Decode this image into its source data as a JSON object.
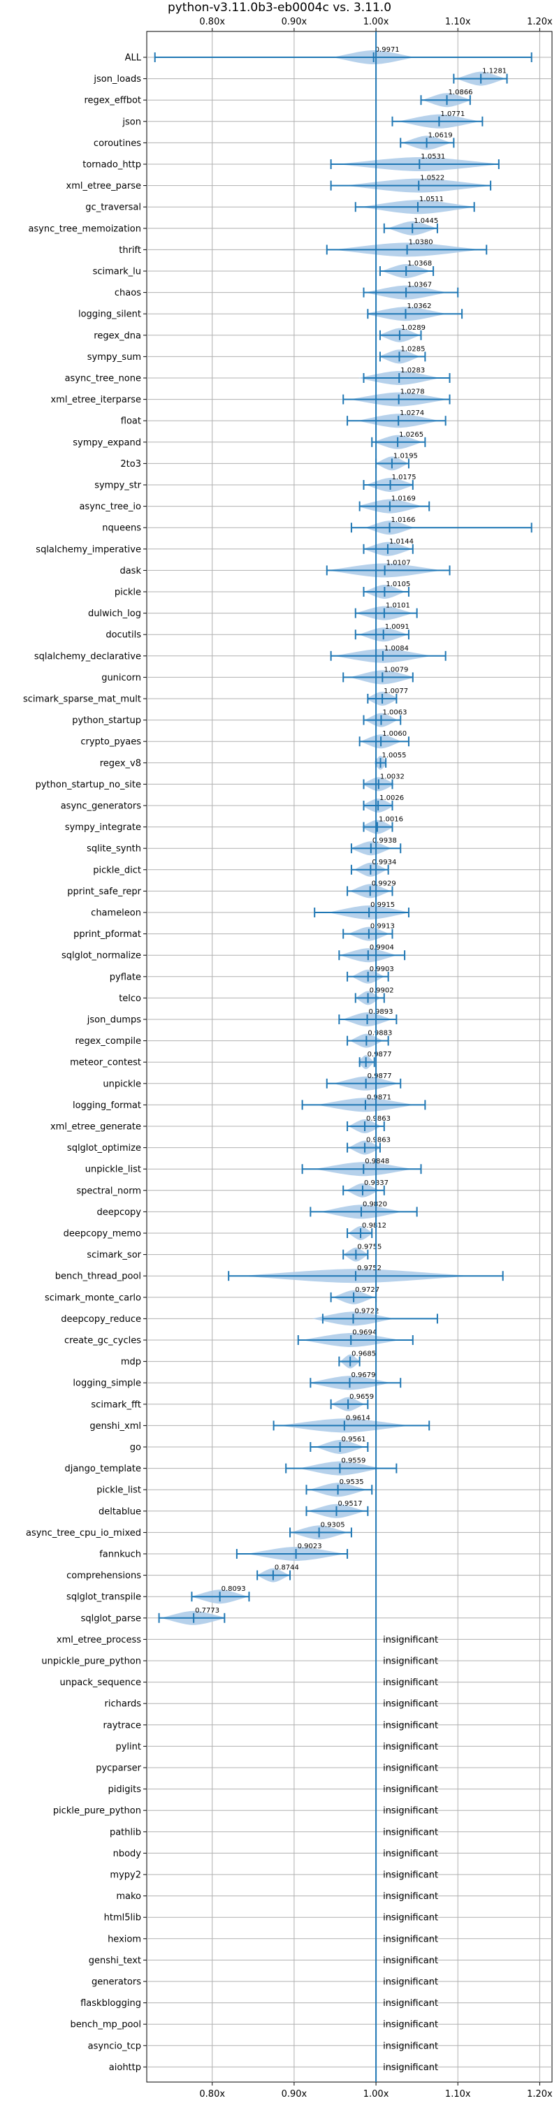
{
  "chart_data": {
    "type": "violin",
    "title": "python-v3.11.0b3-eb0004c vs. 3.11.0",
    "xlim": [
      0.72,
      1.215
    ],
    "x_ticks": [
      {
        "value": 0.8,
        "label": "0.80x"
      },
      {
        "value": 0.9,
        "label": "0.90x"
      },
      {
        "value": 1.0,
        "label": "1.00x"
      },
      {
        "value": 1.1,
        "label": "1.10x"
      },
      {
        "value": 1.2,
        "label": "1.20x"
      }
    ],
    "reference_line": 1.0,
    "grid": true,
    "colors": {
      "fill": "#a9c9e8",
      "line": "#1f77b4",
      "grid": "#b0b0b0"
    },
    "insignificant_text": "insignificant",
    "benchmarks": [
      {
        "name": "ALL",
        "value": 0.9971,
        "min": 0.73,
        "max": 1.19,
        "spread": 0.05
      },
      {
        "name": "json_loads",
        "value": 1.1281,
        "min": 1.095,
        "max": 1.16,
        "spread": 0.03
      },
      {
        "name": "regex_effbot",
        "value": 1.0866,
        "min": 1.055,
        "max": 1.115,
        "spread": 0.03
      },
      {
        "name": "json",
        "value": 1.0771,
        "min": 1.02,
        "max": 1.13,
        "spread": 0.05
      },
      {
        "name": "coroutines",
        "value": 1.0619,
        "min": 1.03,
        "max": 1.095,
        "spread": 0.03
      },
      {
        "name": "tornado_http",
        "value": 1.0531,
        "min": 0.945,
        "max": 1.15,
        "spread": 0.1
      },
      {
        "name": "xml_etree_parse",
        "value": 1.0522,
        "min": 0.945,
        "max": 1.14,
        "spread": 0.09
      },
      {
        "name": "gc_traversal",
        "value": 1.0511,
        "min": 0.975,
        "max": 1.12,
        "spread": 0.07
      },
      {
        "name": "async_tree_memoization",
        "value": 1.0445,
        "min": 1.01,
        "max": 1.075,
        "spread": 0.03
      },
      {
        "name": "thrift",
        "value": 1.038,
        "min": 0.94,
        "max": 1.135,
        "spread": 0.09
      },
      {
        "name": "scimark_lu",
        "value": 1.0368,
        "min": 1.005,
        "max": 1.07,
        "spread": 0.03
      },
      {
        "name": "chaos",
        "value": 1.0367,
        "min": 0.985,
        "max": 1.1,
        "spread": 0.05
      },
      {
        "name": "logging_silent",
        "value": 1.0362,
        "min": 0.99,
        "max": 1.105,
        "spread": 0.05
      },
      {
        "name": "regex_dna",
        "value": 1.0289,
        "min": 1.005,
        "max": 1.055,
        "spread": 0.025
      },
      {
        "name": "sympy_sum",
        "value": 1.0285,
        "min": 1.005,
        "max": 1.06,
        "spread": 0.025
      },
      {
        "name": "async_tree_none",
        "value": 1.0283,
        "min": 0.985,
        "max": 1.09,
        "spread": 0.05
      },
      {
        "name": "xml_etree_iterparse",
        "value": 1.0278,
        "min": 0.96,
        "max": 1.09,
        "spread": 0.06
      },
      {
        "name": "float",
        "value": 1.0274,
        "min": 0.965,
        "max": 1.085,
        "spread": 0.05
      },
      {
        "name": "sympy_expand",
        "value": 1.0265,
        "min": 0.995,
        "max": 1.06,
        "spread": 0.03
      },
      {
        "name": "2to3",
        "value": 1.0195,
        "min": 1.0,
        "max": 1.04,
        "spread": 0.02
      },
      {
        "name": "sympy_str",
        "value": 1.0175,
        "min": 0.985,
        "max": 1.045,
        "spread": 0.03
      },
      {
        "name": "async_tree_io",
        "value": 1.0169,
        "min": 0.98,
        "max": 1.065,
        "spread": 0.04
      },
      {
        "name": "nqueens",
        "value": 1.0166,
        "min": 0.97,
        "max": 1.19,
        "spread": 0.03
      },
      {
        "name": "sqlalchemy_imperative",
        "value": 1.0144,
        "min": 0.985,
        "max": 1.045,
        "spread": 0.03
      },
      {
        "name": "dask",
        "value": 1.0107,
        "min": 0.94,
        "max": 1.09,
        "spread": 0.07
      },
      {
        "name": "pickle",
        "value": 1.0105,
        "min": 0.985,
        "max": 1.04,
        "spread": 0.025
      },
      {
        "name": "dulwich_log",
        "value": 1.0101,
        "min": 0.975,
        "max": 1.05,
        "spread": 0.035
      },
      {
        "name": "docutils",
        "value": 1.0091,
        "min": 0.975,
        "max": 1.04,
        "spread": 0.03
      },
      {
        "name": "sqlalchemy_declarative",
        "value": 1.0084,
        "min": 0.945,
        "max": 1.085,
        "spread": 0.06
      },
      {
        "name": "gunicorn",
        "value": 1.0079,
        "min": 0.96,
        "max": 1.045,
        "spread": 0.04
      },
      {
        "name": "scimark_sparse_mat_mult",
        "value": 1.0077,
        "min": 0.99,
        "max": 1.025,
        "spread": 0.02
      },
      {
        "name": "python_startup",
        "value": 1.0063,
        "min": 0.985,
        "max": 1.03,
        "spread": 0.02
      },
      {
        "name": "crypto_pyaes",
        "value": 1.006,
        "min": 0.98,
        "max": 1.04,
        "spread": 0.025
      },
      {
        "name": "regex_v8",
        "value": 1.0055,
        "min": 1.0,
        "max": 1.012,
        "spread": 0.008
      },
      {
        "name": "python_startup_no_site",
        "value": 1.0032,
        "min": 0.985,
        "max": 1.02,
        "spread": 0.02
      },
      {
        "name": "async_generators",
        "value": 1.0026,
        "min": 0.985,
        "max": 1.02,
        "spread": 0.02
      },
      {
        "name": "sympy_integrate",
        "value": 1.0016,
        "min": 0.985,
        "max": 1.02,
        "spread": 0.02
      },
      {
        "name": "sqlite_synth",
        "value": 0.9938,
        "min": 0.97,
        "max": 1.03,
        "spread": 0.025
      },
      {
        "name": "pickle_dict",
        "value": 0.9934,
        "min": 0.97,
        "max": 1.015,
        "spread": 0.02
      },
      {
        "name": "pprint_safe_repr",
        "value": 0.9929,
        "min": 0.965,
        "max": 1.02,
        "spread": 0.025
      },
      {
        "name": "chameleon",
        "value": 0.9915,
        "min": 0.925,
        "max": 1.04,
        "spread": 0.05
      },
      {
        "name": "pprint_pformat",
        "value": 0.9913,
        "min": 0.96,
        "max": 1.02,
        "spread": 0.025
      },
      {
        "name": "sqlglot_normalize",
        "value": 0.9904,
        "min": 0.955,
        "max": 1.035,
        "spread": 0.035
      },
      {
        "name": "pyflate",
        "value": 0.9903,
        "min": 0.965,
        "max": 1.015,
        "spread": 0.02
      },
      {
        "name": "telco",
        "value": 0.9902,
        "min": 0.975,
        "max": 1.01,
        "spread": 0.015
      },
      {
        "name": "json_dumps",
        "value": 0.9893,
        "min": 0.955,
        "max": 1.025,
        "spread": 0.03
      },
      {
        "name": "regex_compile",
        "value": 0.9883,
        "min": 0.965,
        "max": 1.015,
        "spread": 0.02
      },
      {
        "name": "meteor_contest",
        "value": 0.9877,
        "min": 0.98,
        "max": 0.998,
        "spread": 0.01
      },
      {
        "name": "unpickle",
        "value": 0.9877,
        "min": 0.94,
        "max": 1.03,
        "spread": 0.04
      },
      {
        "name": "logging_format",
        "value": 0.9871,
        "min": 0.91,
        "max": 1.06,
        "spread": 0.06
      },
      {
        "name": "xml_etree_generate",
        "value": 0.9863,
        "min": 0.965,
        "max": 1.01,
        "spread": 0.02
      },
      {
        "name": "sqlglot_optimize",
        "value": 0.9863,
        "min": 0.965,
        "max": 1.005,
        "spread": 0.02
      },
      {
        "name": "unpickle_list",
        "value": 0.9848,
        "min": 0.91,
        "max": 1.055,
        "spread": 0.06
      },
      {
        "name": "spectral_norm",
        "value": 0.9837,
        "min": 0.96,
        "max": 1.01,
        "spread": 0.02
      },
      {
        "name": "deepcopy",
        "value": 0.982,
        "min": 0.92,
        "max": 1.05,
        "spread": 0.05
      },
      {
        "name": "deepcopy_memo",
        "value": 0.9812,
        "min": 0.965,
        "max": 0.995,
        "spread": 0.015
      },
      {
        "name": "scimark_sor",
        "value": 0.9755,
        "min": 0.96,
        "max": 0.99,
        "spread": 0.015
      },
      {
        "name": "bench_thread_pool",
        "value": 0.9752,
        "min": 0.82,
        "max": 1.155,
        "spread": 0.14
      },
      {
        "name": "scimark_monte_carlo",
        "value": 0.9727,
        "min": 0.945,
        "max": 1.0,
        "spread": 0.025
      },
      {
        "name": "deepcopy_reduce",
        "value": 0.9722,
        "min": 0.935,
        "max": 1.075,
        "spread": 0.05
      },
      {
        "name": "create_gc_cycles",
        "value": 0.9694,
        "min": 0.905,
        "max": 1.045,
        "spread": 0.06
      },
      {
        "name": "mdp",
        "value": 0.9685,
        "min": 0.955,
        "max": 0.98,
        "spread": 0.012
      },
      {
        "name": "logging_simple",
        "value": 0.9679,
        "min": 0.92,
        "max": 1.03,
        "spread": 0.05
      },
      {
        "name": "scimark_fft",
        "value": 0.9659,
        "min": 0.945,
        "max": 0.99,
        "spread": 0.02
      },
      {
        "name": "genshi_xml",
        "value": 0.9614,
        "min": 0.875,
        "max": 1.065,
        "spread": 0.08
      },
      {
        "name": "go",
        "value": 0.9561,
        "min": 0.92,
        "max": 0.99,
        "spread": 0.03
      },
      {
        "name": "django_template",
        "value": 0.9559,
        "min": 0.89,
        "max": 1.025,
        "spread": 0.05
      },
      {
        "name": "pickle_list",
        "value": 0.9535,
        "min": 0.915,
        "max": 0.995,
        "spread": 0.035
      },
      {
        "name": "deltablue",
        "value": 0.9517,
        "min": 0.915,
        "max": 0.99,
        "spread": 0.035
      },
      {
        "name": "async_tree_cpu_io_mixed",
        "value": 0.9305,
        "min": 0.895,
        "max": 0.97,
        "spread": 0.035
      },
      {
        "name": "fannkuch",
        "value": 0.9023,
        "min": 0.83,
        "max": 0.965,
        "spread": 0.06
      },
      {
        "name": "comprehensions",
        "value": 0.8744,
        "min": 0.855,
        "max": 0.895,
        "spread": 0.02
      },
      {
        "name": "sqlglot_transpile",
        "value": 0.8093,
        "min": 0.775,
        "max": 0.845,
        "spread": 0.035
      },
      {
        "name": "sqlglot_parse",
        "value": 0.7773,
        "min": 0.735,
        "max": 0.815,
        "spread": 0.04
      },
      {
        "name": "xml_etree_process",
        "insignificant": true
      },
      {
        "name": "unpickle_pure_python",
        "insignificant": true
      },
      {
        "name": "unpack_sequence",
        "insignificant": true
      },
      {
        "name": "richards",
        "insignificant": true
      },
      {
        "name": "raytrace",
        "insignificant": true
      },
      {
        "name": "pylint",
        "insignificant": true
      },
      {
        "name": "pycparser",
        "insignificant": true
      },
      {
        "name": "pidigits",
        "insignificant": true
      },
      {
        "name": "pickle_pure_python",
        "insignificant": true
      },
      {
        "name": "pathlib",
        "insignificant": true
      },
      {
        "name": "nbody",
        "insignificant": true
      },
      {
        "name": "mypy2",
        "insignificant": true
      },
      {
        "name": "mako",
        "insignificant": true
      },
      {
        "name": "html5lib",
        "insignificant": true
      },
      {
        "name": "hexiom",
        "insignificant": true
      },
      {
        "name": "genshi_text",
        "insignificant": true
      },
      {
        "name": "generators",
        "insignificant": true
      },
      {
        "name": "flaskblogging",
        "insignificant": true
      },
      {
        "name": "bench_mp_pool",
        "insignificant": true
      },
      {
        "name": "asyncio_tcp",
        "insignificant": true
      },
      {
        "name": "aiohttp",
        "insignificant": true
      }
    ]
  }
}
